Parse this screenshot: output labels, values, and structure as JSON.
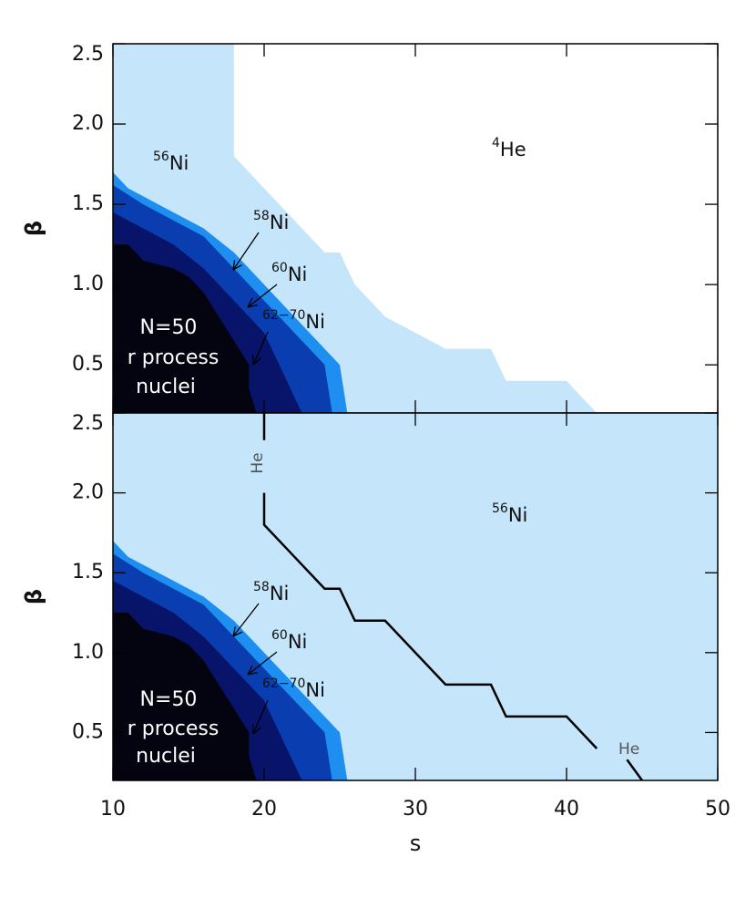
{
  "chart_data": [
    {
      "type": "contour",
      "ylabel": "β",
      "xlim": [
        10,
        50
      ],
      "xticks": [
        10,
        20,
        30,
        40,
        50
      ],
      "xtick_labels": false,
      "ylim": [
        0.2,
        2.5
      ],
      "yticks": [
        0.5,
        1.0,
        1.5,
        2.0,
        2.5
      ],
      "background": "#c4e5fa",
      "regions": [
        {
          "side": "upper-right",
          "color": "#ffffff",
          "x": [
            18,
            18,
            20,
            24,
            25,
            26,
            28,
            32,
            35,
            36,
            40,
            42
          ],
          "y": [
            2.5,
            1.8,
            1.6,
            1.2,
            1.2,
            1.0,
            0.8,
            0.6,
            0.6,
            0.4,
            0.4,
            0.2
          ]
        },
        {
          "side": "lower-left",
          "color": "#1e8ef0",
          "x": [
            10,
            11,
            13,
            15,
            16,
            18,
            20,
            22,
            24,
            25,
            25.5
          ],
          "y": [
            1.7,
            1.6,
            1.5,
            1.4,
            1.35,
            1.2,
            1.0,
            0.8,
            0.6,
            0.5,
            0.2
          ]
        },
        {
          "side": "lower-left",
          "color": "#0a3eb0",
          "x": [
            10,
            12,
            14,
            16,
            18,
            20,
            22,
            24,
            24.5
          ],
          "y": [
            1.62,
            1.5,
            1.4,
            1.3,
            1.1,
            0.9,
            0.7,
            0.5,
            0.2
          ]
        },
        {
          "side": "lower-left",
          "color": "#07146a",
          "x": [
            10,
            12,
            14,
            16,
            18,
            20,
            21,
            22,
            22.5
          ],
          "y": [
            1.45,
            1.35,
            1.25,
            1.1,
            0.9,
            0.7,
            0.5,
            0.3,
            0.2
          ]
        },
        {
          "side": "lower-left",
          "color": "#040410",
          "x": [
            10,
            11,
            12,
            14,
            15,
            16,
            17,
            18,
            19,
            19,
            19.5
          ],
          "y": [
            1.25,
            1.25,
            1.15,
            1.1,
            1.05,
            0.95,
            0.8,
            0.65,
            0.5,
            0.35,
            0.2
          ]
        }
      ],
      "annotations": [
        {
          "sup": "56",
          "text": "Ni"
        },
        {
          "sup": "4",
          "text": "He"
        },
        {
          "sup": "58",
          "text": "Ni"
        },
        {
          "sup": "60",
          "text": "Ni"
        },
        {
          "sup": "62−70",
          "text": "Ni"
        },
        {
          "text": "N=50"
        },
        {
          "text": "r process"
        },
        {
          "text": "nuclei"
        }
      ]
    },
    {
      "type": "contour",
      "ylabel": "β",
      "xlabel": "s",
      "xlim": [
        10,
        50
      ],
      "xticks": [
        10,
        20,
        30,
        40,
        50
      ],
      "xtick_labels": true,
      "ylim": [
        0.2,
        2.5
      ],
      "yticks": [
        0.5,
        1.0,
        1.5,
        2.0,
        2.5
      ],
      "background": "#c4e5fa",
      "regions": [
        {
          "side": "lower-left",
          "color": "#1e8ef0",
          "x": [
            10,
            11,
            13,
            15,
            16,
            18,
            20,
            22,
            24,
            25,
            25.5
          ],
          "y": [
            1.7,
            1.6,
            1.5,
            1.4,
            1.35,
            1.2,
            1.0,
            0.8,
            0.6,
            0.5,
            0.2
          ]
        },
        {
          "side": "lower-left",
          "color": "#0a3eb0",
          "x": [
            10,
            12,
            14,
            16,
            18,
            20,
            22,
            24,
            24.5
          ],
          "y": [
            1.62,
            1.5,
            1.4,
            1.3,
            1.1,
            0.9,
            0.7,
            0.5,
            0.2
          ]
        },
        {
          "side": "lower-left",
          "color": "#07146a",
          "x": [
            10,
            12,
            14,
            16,
            18,
            20,
            21,
            22,
            22.5
          ],
          "y": [
            1.45,
            1.35,
            1.25,
            1.1,
            0.9,
            0.7,
            0.5,
            0.3,
            0.2
          ]
        },
        {
          "side": "lower-left",
          "color": "#040410",
          "x": [
            10,
            11,
            12,
            14,
            15,
            16,
            17,
            18,
            19,
            19,
            19.5
          ],
          "y": [
            1.25,
            1.25,
            1.15,
            1.1,
            1.05,
            0.95,
            0.8,
            0.65,
            0.5,
            0.35,
            0.2
          ]
        }
      ],
      "line": {
        "color": "#000000",
        "x": [
          20,
          20,
          null,
          20,
          20,
          22,
          24,
          25,
          26,
          28,
          32,
          35,
          36,
          40,
          42,
          null,
          44,
          45
        ],
        "y": [
          2.5,
          2.33,
          null,
          2.0,
          1.8,
          1.6,
          1.4,
          1.4,
          1.2,
          1.2,
          0.8,
          0.8,
          0.6,
          0.6,
          0.4,
          null,
          0.33,
          0.2
        ]
      },
      "annotations": [
        {
          "sup": "56",
          "text": "Ni"
        },
        {
          "sup": "58",
          "text": "Ni"
        },
        {
          "sup": "60",
          "text": "Ni"
        },
        {
          "sup": "62−70",
          "text": "Ni"
        },
        {
          "text": "N=50"
        },
        {
          "text": "r process"
        },
        {
          "text": "nuclei"
        },
        {
          "text": "He"
        },
        {
          "text": "He"
        }
      ]
    }
  ]
}
